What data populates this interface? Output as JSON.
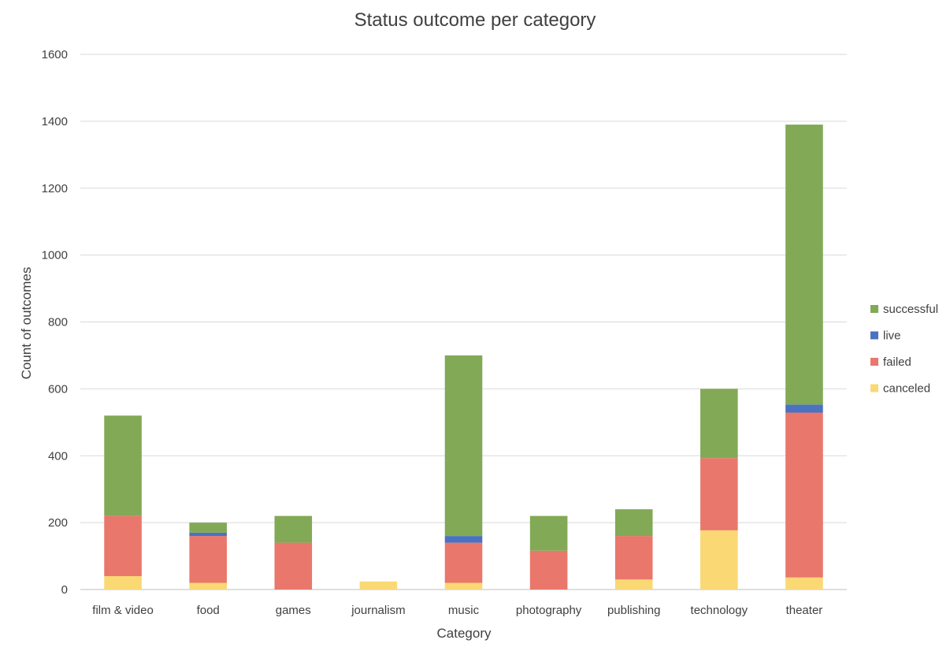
{
  "chart_data": {
    "type": "bar",
    "stacked": true,
    "title": "Status outcome per category",
    "xlabel": "Category",
    "ylabel": "Count of outcomes",
    "ylim": [
      0,
      1600
    ],
    "yticks": [
      0,
      200,
      400,
      600,
      800,
      1000,
      1200,
      1400,
      1600
    ],
    "grid": true,
    "legend_position": "right",
    "categories": [
      "film & video",
      "food",
      "games",
      "journalism",
      "music",
      "photography",
      "publishing",
      "technology",
      "theater"
    ],
    "series": [
      {
        "name": "canceled",
        "color": "#FAD874",
        "values": [
          40,
          20,
          0,
          24,
          20,
          0,
          30,
          177,
          36
        ]
      },
      {
        "name": "failed",
        "color": "#E9776C",
        "values": [
          180,
          140,
          140,
          0,
          120,
          116,
          130,
          216,
          493
        ]
      },
      {
        "name": "live",
        "color": "#4A72C1",
        "values": [
          0,
          10,
          0,
          0,
          20,
          0,
          0,
          0,
          24
        ]
      },
      {
        "name": "successful",
        "color": "#82A956",
        "values": [
          300,
          30,
          80,
          0,
          540,
          104,
          80,
          207,
          837
        ]
      }
    ],
    "legend_order": [
      "successful",
      "live",
      "failed",
      "canceled"
    ]
  }
}
